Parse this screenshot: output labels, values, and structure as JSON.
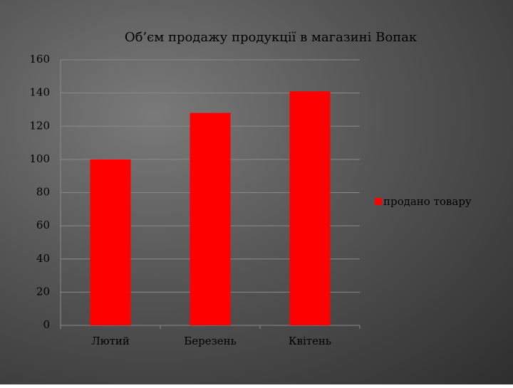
{
  "chart_data": {
    "type": "bar",
    "title": "Об’єм продажу продукції в магазині Вопак",
    "categories": [
      "Лютий",
      "Березень",
      "Квітень"
    ],
    "series": [
      {
        "name": "продано товару",
        "color": "#ff0000",
        "values": [
          100,
          128,
          141
        ]
      }
    ],
    "ylim": [
      0,
      160
    ],
    "yticks": [
      0,
      20,
      40,
      60,
      80,
      100,
      120,
      140,
      160
    ],
    "grid": true,
    "legend": "right"
  }
}
